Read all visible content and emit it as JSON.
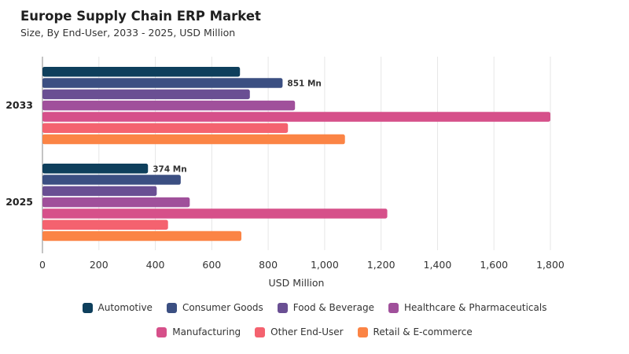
{
  "header": {
    "title": "Europe Supply Chain ERP Market",
    "subtitle": "Size, By End-User, 2033 - 2025, USD Million"
  },
  "chart_data": {
    "type": "bar",
    "orientation": "horizontal",
    "categories": [
      "2033",
      "2025"
    ],
    "series": [
      {
        "name": "Automotive",
        "color": "#0e3f5c",
        "values": [
          700,
          374
        ]
      },
      {
        "name": "Consumer Goods",
        "color": "#3b4f82",
        "values": [
          851,
          490
        ]
      },
      {
        "name": "Food & Beverage",
        "color": "#6a4f93",
        "values": [
          735,
          405
        ]
      },
      {
        "name": "Healthcare & Pharmaceuticals",
        "color": "#a0509b",
        "values": [
          895,
          522
        ]
      },
      {
        "name": "Manufacturing",
        "color": "#d6508a",
        "values": [
          1800,
          1222
        ]
      },
      {
        "name": "Other End-User",
        "color": "#f4626f",
        "values": [
          870,
          445
        ]
      },
      {
        "name": "Retail & E-commerce",
        "color": "#fb8445",
        "values": [
          1072,
          705
        ]
      }
    ],
    "data_labels": [
      {
        "category": "2033",
        "series": "Consumer Goods",
        "text": "851 Mn"
      },
      {
        "category": "2025",
        "series": "Automotive",
        "text": "374 Mn"
      }
    ],
    "xlabel": "USD Million",
    "ylabel": "",
    "xlim": [
      0,
      1800
    ],
    "xticks": [
      0,
      200,
      400,
      600,
      800,
      1000,
      1200,
      1400,
      1600,
      1800
    ],
    "xtick_labels": [
      "0",
      "200",
      "400",
      "600",
      "800",
      "1,000",
      "1,200",
      "1,400",
      "1,600",
      "1,800"
    ],
    "grid": true,
    "legend_position": "bottom"
  }
}
